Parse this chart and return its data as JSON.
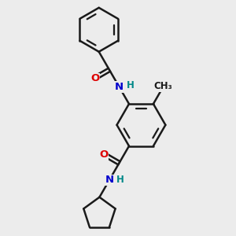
{
  "background_color": "#ececec",
  "bond_color": "#1a1a1a",
  "bond_width": 1.8,
  "O_color": "#dd0000",
  "N_color": "#0000cc",
  "H_color": "#008888",
  "C_color": "#1a1a1a",
  "figsize": [
    3.0,
    3.0
  ],
  "dpi": 100,
  "xlim": [
    0,
    10
  ],
  "ylim": [
    0,
    10
  ]
}
